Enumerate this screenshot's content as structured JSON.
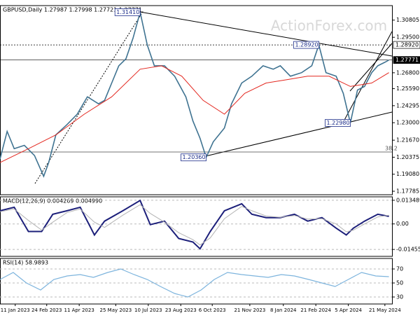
{
  "chart_data": [
    {
      "type": "line",
      "title": "GBPUSD,Daily  1.27987 1.27998 1.27721 1.27771",
      "watermark": "ActionForex.com",
      "xlim": [
        0,
        386
      ],
      "ylim": [
        1.1752,
        1.3191
      ],
      "grid": false,
      "yticks": [
        {
          "value": 1.30805,
          "label": "1.30805"
        },
        {
          "value": 1.295,
          "label": "1.29500"
        },
        {
          "value": 1.268,
          "label": "1.26800"
        },
        {
          "value": 1.2559,
          "label": "1.25590"
        },
        {
          "value": 1.24295,
          "label": "1.24295"
        },
        {
          "value": 1.23,
          "label": "1.23000"
        },
        {
          "value": 1.2167,
          "label": "1.21670"
        },
        {
          "value": 1.20375,
          "label": "1.20375"
        },
        {
          "value": 1.1908,
          "label": "1.19080"
        },
        {
          "value": 1.17785,
          "label": "1.17785"
        }
      ],
      "levels": [
        {
          "value": 1.2892,
          "label": "1.28920",
          "style": "outline"
        },
        {
          "value": 1.27771,
          "label": "1.27771",
          "style": "current"
        }
      ],
      "annotations": [
        {
          "x": 138,
          "value": 1.3141,
          "label": "1.31410"
        },
        {
          "x": 314,
          "value": 1.2892,
          "label": "1.28920"
        },
        {
          "x": 203,
          "value": 1.2036,
          "label": "1.20360"
        },
        {
          "x": 345,
          "value": 1.2298,
          "label": "1.22980"
        }
      ],
      "fib_label": "38.2",
      "series": [
        {
          "color": "#3f7391",
          "width": 1.6,
          "x": [
            0,
            7,
            14,
            24,
            34,
            43,
            48,
            55,
            66,
            76,
            86,
            97,
            103,
            110,
            117,
            124,
            131,
            138,
            145,
            152,
            162,
            172,
            183,
            190,
            197,
            203,
            210,
            221,
            228,
            238,
            248,
            259,
            269,
            276,
            286,
            297,
            307,
            314,
            321,
            331,
            338,
            345,
            352,
            359,
            366,
            372,
            379,
            383
          ],
          "values": [
            1.2023,
            1.2234,
            1.2102,
            1.2128,
            1.205,
            1.1892,
            1.1997,
            1.2207,
            1.2286,
            1.2365,
            1.2497,
            1.2444,
            1.247,
            1.2602,
            1.2733,
            1.2786,
            1.2944,
            1.3141,
            1.2891,
            1.2733,
            1.2733,
            1.2654,
            1.2497,
            1.2313,
            1.2181,
            1.2036,
            1.2155,
            1.226,
            1.2444,
            1.2602,
            1.2654,
            1.2733,
            1.2707,
            1.2733,
            1.2654,
            1.2681,
            1.2733,
            1.2892,
            1.2681,
            1.2654,
            1.2523,
            1.2298,
            1.2549,
            1.2576,
            1.2681,
            1.2733,
            1.276,
            1.2777
          ]
        },
        {
          "color": "#e3261e",
          "width": 1,
          "x": [
            0,
            28,
            55,
            83,
            110,
            138,
            159,
            179,
            200,
            221,
            241,
            262,
            283,
            303,
            324,
            345,
            366,
            383
          ],
          "values": [
            1.1997,
            1.2102,
            1.2207,
            1.2365,
            1.2497,
            1.2707,
            1.2733,
            1.2654,
            1.247,
            1.2365,
            1.2523,
            1.2602,
            1.2628,
            1.2654,
            1.2654,
            1.2576,
            1.2602,
            1.2681
          ]
        }
      ]
    },
    {
      "type": "line",
      "title": "MACD(12,26,9) 0.004269 0.004990",
      "xlim": [
        0,
        386
      ],
      "ylim": [
        -0.0185,
        0.01546
      ],
      "grid": true,
      "yticks": [
        0.013489,
        {
          "value": 0,
          "label": "0.00"
        },
        -0.014554
      ],
      "series": [
        {
          "color": "#1c1f7a",
          "width": 2,
          "x": [
            0,
            14,
            28,
            41,
            52,
            66,
            79,
            93,
            103,
            121,
            138,
            148,
            162,
            176,
            190,
            197,
            207,
            221,
            238,
            248,
            262,
            276,
            290,
            303,
            317,
            331,
            341,
            348,
            359,
            372,
            383
          ],
          "values": [
            0.0075,
            0.0095,
            -0.0043,
            -0.0043,
            0.0055,
            0.0075,
            0.0095,
            -0.0063,
            0.0016,
            0.0075,
            0.0134,
            -0.0004,
            0.0016,
            -0.0083,
            -0.0103,
            -0.0142,
            -0.0043,
            0.0075,
            0.0115,
            0.0055,
            0.0036,
            0.0036,
            0.0055,
            0.0016,
            0.0036,
            -0.0024,
            -0.0063,
            -0.0024,
            0.0016,
            0.0055,
            0.0043
          ]
        },
        {
          "color": "#b4b4b4",
          "width": 1,
          "x": [
            0,
            14,
            28,
            41,
            52,
            66,
            79,
            93,
            103,
            121,
            138,
            148,
            162,
            176,
            190,
            197,
            207,
            221,
            238,
            248,
            262,
            276,
            290,
            303,
            317,
            331,
            341,
            348,
            359,
            372,
            383
          ],
          "values": [
            0.007,
            0.0085,
            0.002,
            -0.0035,
            0.001,
            0.0065,
            0.0085,
            0.001,
            -0.002,
            0.005,
            0.011,
            0.006,
            0.001,
            -0.005,
            -0.009,
            -0.012,
            -0.008,
            0.003,
            0.01,
            0.0075,
            0.0045,
            0.0038,
            0.0048,
            0.0028,
            0.003,
            0,
            -0.0045,
            -0.0035,
            0,
            0.004,
            0.005
          ]
        }
      ]
    },
    {
      "type": "line",
      "title": "RSI(14) 58.9893",
      "xlim": [
        0,
        386
      ],
      "ylim": [
        20,
        85
      ],
      "grid": true,
      "yticks": [
        70,
        50,
        30
      ],
      "xticks": [
        {
          "value": 15,
          "label": "11 Jan 2023"
        },
        {
          "value": 46,
          "label": "24 Feb 2023"
        },
        {
          "value": 78,
          "label": "11 Apr 2023"
        },
        {
          "value": 114,
          "label": "25 May 2023"
        },
        {
          "value": 146,
          "label": "10 Jul 2023"
        },
        {
          "value": 178,
          "label": "23 Aug 2023"
        },
        {
          "value": 209,
          "label": "6 Oct 2023"
        },
        {
          "value": 246,
          "label": "21 Nov 2023"
        },
        {
          "value": 279,
          "label": "8 Jan 2024"
        },
        {
          "value": 311,
          "label": "21 Feb 2024"
        },
        {
          "value": 343,
          "label": "5 Apr 2024"
        },
        {
          "value": 379,
          "label": "21 May 2024"
        }
      ],
      "series": [
        {
          "color": "#7db4dd",
          "width": 1.2,
          "x": [
            0,
            13,
            26,
            40,
            53,
            66,
            79,
            92,
            106,
            119,
            132,
            145,
            158,
            172,
            185,
            198,
            211,
            224,
            238,
            251,
            264,
            277,
            290,
            304,
            317,
            330,
            343,
            356,
            370,
            383
          ],
          "values": [
            55,
            65,
            50,
            40,
            55,
            60,
            62,
            58,
            65,
            70,
            62,
            55,
            45,
            35,
            30,
            40,
            55,
            65,
            62,
            60,
            58,
            62,
            60,
            55,
            50,
            45,
            55,
            65,
            60,
            59
          ]
        }
      ]
    }
  ]
}
